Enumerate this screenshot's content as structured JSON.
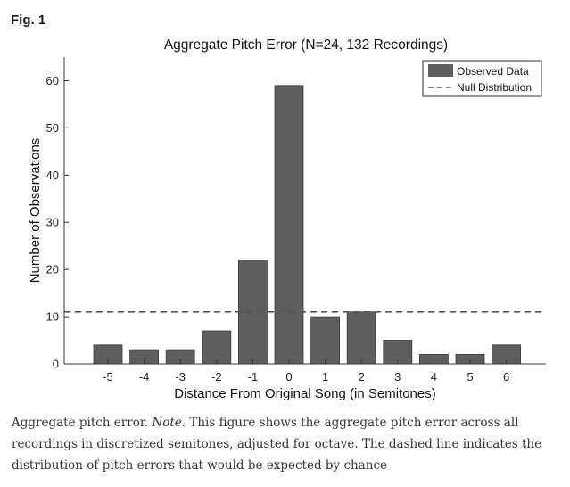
{
  "figure": {
    "label": "Fig. 1",
    "caption_prefix": "Aggregate pitch error. ",
    "caption_note_label": "Note.",
    "caption_text": " This figure shows the aggregate pitch error across all recordings in discretized semitones, adjusted for octave. The dashed line indicates the distribution of pitch errors that would be expected by chance"
  },
  "chart_data": {
    "type": "bar",
    "title": "Aggregate Pitch Error (N=24, 132 Recordings)",
    "xlabel": "Distance From Original Song (in Semitones)",
    "ylabel": "Number of Observations",
    "categories": [
      "-5",
      "-4",
      "-3",
      "-2",
      "-1",
      "0",
      "1",
      "2",
      "3",
      "4",
      "5",
      "6"
    ],
    "series": [
      {
        "name": "Observed Data",
        "values": [
          4,
          3,
          3,
          7,
          22,
          59,
          10,
          11,
          5,
          2,
          2,
          4
        ]
      }
    ],
    "reference_line": {
      "name": "Null Distribution",
      "value": 11,
      "style": "dashed"
    },
    "ylim": [
      0,
      65
    ],
    "yticks": [
      "0",
      "10",
      "20",
      "30",
      "40",
      "50",
      "60"
    ],
    "grid": false,
    "legend_position": "top-right",
    "colors": {
      "bar": "#5e5e5e",
      "bar_edge": "#3a3a3a",
      "reference_line": "#555555",
      "axis": "#333333"
    }
  }
}
